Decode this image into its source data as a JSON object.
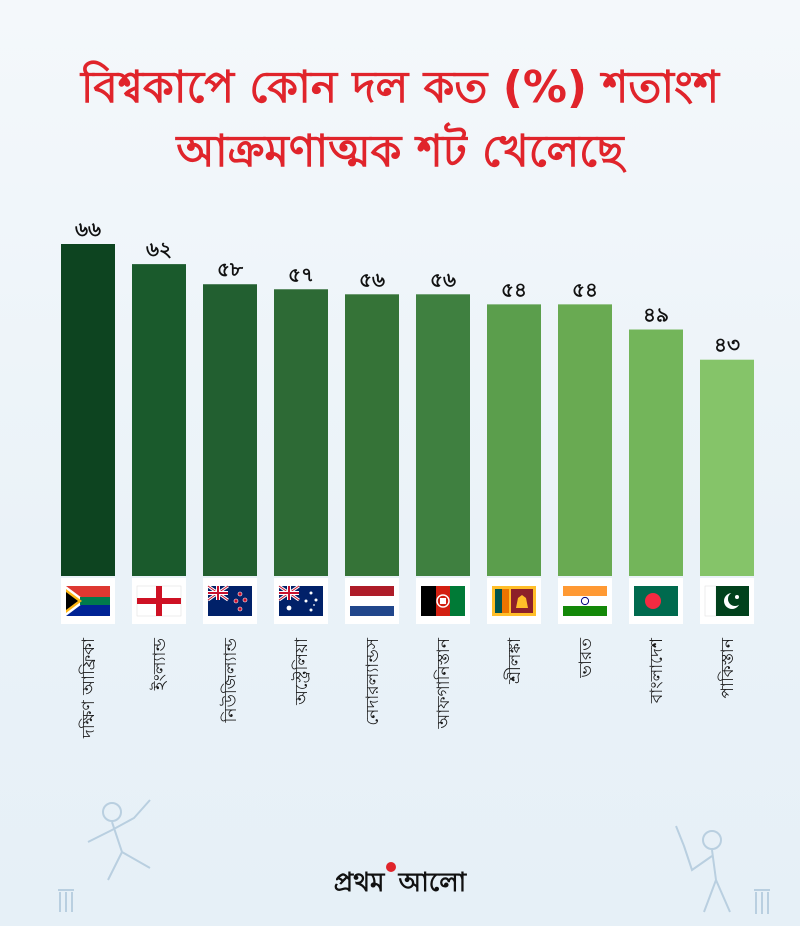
{
  "title": {
    "line1": "বিশ্বকাপে কোন দল কত (%) শতাংশ",
    "line2": "আক্রমণাত্মক শট খেলেছে"
  },
  "logo": {
    "part1": "প্রথম",
    "part2": "আলো"
  },
  "colors": {
    "title": "#e0242b",
    "bar_gradient": [
      "#0d4420",
      "#1a5a2c",
      "#225f30",
      "#2d6a35",
      "#357337",
      "#3f8040",
      "#5b9e4c",
      "#69aa52",
      "#73b55a",
      "#85c469"
    ]
  },
  "chart_data": {
    "type": "bar",
    "title": "বিশ্বকাপে কোন দল কত (%) শতাংশ আক্রমণাত্মক শট খেলেছে",
    "categories": [
      "দক্ষিণ আফ্রিকা",
      "ইংল্যান্ড",
      "নিউজিল্যান্ড",
      "অস্ট্রেলিয়া",
      "নেদারল্যান্ডস",
      "আফগানিস্তান",
      "শ্রীলঙ্কা",
      "ভারত",
      "বাংলাদেশ",
      "পাকিস্তান"
    ],
    "values": [
      66,
      62,
      58,
      57,
      56,
      56,
      54,
      54,
      49,
      43
    ],
    "value_labels": [
      "৬৬",
      "৬২",
      "৫৮",
      "৫৭",
      "৫৬",
      "৫৬",
      "৫৪",
      "৫৪",
      "৪৯",
      "৪৩"
    ],
    "flags": [
      "south-africa-flag-icon",
      "england-flag-icon",
      "new-zealand-flag-icon",
      "australia-flag-icon",
      "netherlands-flag-icon",
      "afghanistan-flag-icon",
      "sri-lanka-flag-icon",
      "india-flag-icon",
      "bangladesh-flag-icon",
      "pakistan-flag-icon"
    ],
    "xlabel": "",
    "ylabel": "",
    "ylim": [
      0,
      66
    ],
    "grid": false,
    "legend": "none"
  }
}
